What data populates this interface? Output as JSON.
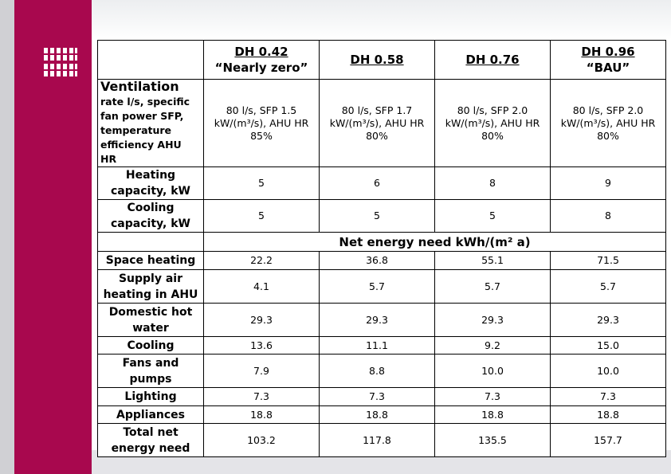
{
  "table": {
    "columns": [
      {
        "name": "DH 0.42",
        "note": "“Nearly zero”"
      },
      {
        "name": "DH 0.58"
      },
      {
        "name": "DH 0.76"
      },
      {
        "name": "DH 0.96",
        "note": "“BAU”"
      }
    ],
    "rows": [
      {
        "label": "Ventilation",
        "label_rest": "rate l/s, specific fan power SFP, temperature efficiency AHU HR",
        "values": [
          "80 l/s, SFP 1.5 kW/(m³/s), AHU HR 85%",
          "80 l/s, SFP 1.7 kW/(m³/s), AHU HR 80%",
          "80 l/s, SFP 2.0 kW/(m³/s), AHU HR 80%",
          "80 l/s, SFP 2.0 kW/(m³/s), AHU HR 80%"
        ]
      },
      {
        "label": "Heating capacity, kW",
        "values": [
          "5",
          "6",
          "8",
          "9"
        ]
      },
      {
        "label": "Cooling capacity, kW",
        "values": [
          "5",
          "5",
          "5",
          "8"
        ]
      },
      {
        "section": "Net energy need kWh/(m² a)"
      },
      {
        "label": "Space heating",
        "values": [
          "22.2",
          "36.8",
          "55.1",
          "71.5"
        ]
      },
      {
        "label": "Supply air heating in AHU",
        "values": [
          "4.1",
          "5.7",
          "5.7",
          "5.7"
        ]
      },
      {
        "label": "Domestic hot water",
        "values": [
          "29.3",
          "29.3",
          "29.3",
          "29.3"
        ]
      },
      {
        "label": "Cooling",
        "values": [
          "13.6",
          "11.1",
          "9.2",
          "15.0"
        ]
      },
      {
        "label": "Fans and pumps",
        "values": [
          "7.9",
          "8.8",
          "10.0",
          "10.0"
        ]
      },
      {
        "label": "Lighting",
        "values": [
          "7.3",
          "7.3",
          "7.3",
          "7.3"
        ]
      },
      {
        "label": "Appliances",
        "values": [
          "18.8",
          "18.8",
          "18.8",
          "18.8"
        ]
      },
      {
        "label": "Total net energy need",
        "values": [
          "103.2",
          "117.8",
          "135.5",
          "157.7"
        ]
      }
    ]
  }
}
